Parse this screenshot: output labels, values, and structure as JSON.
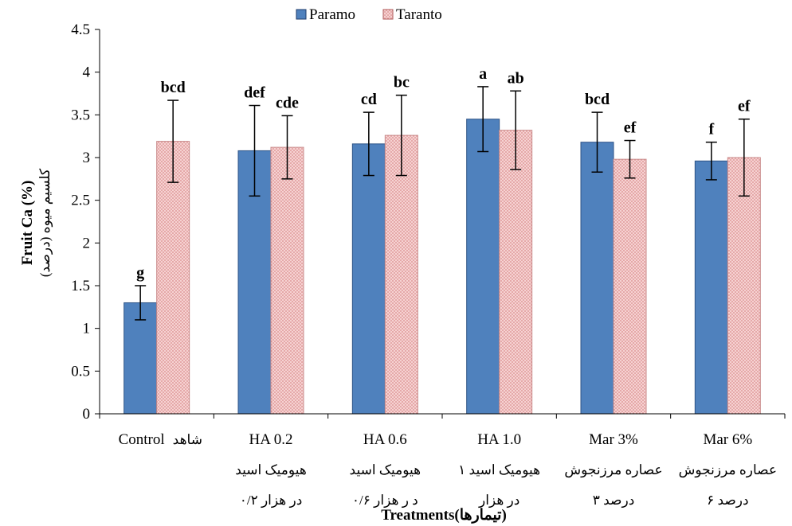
{
  "chart_data": {
    "type": "bar",
    "title": "",
    "xlabel": "Treatments(تیمارها)",
    "ylabel": "Fruit Ca (%)",
    "ylabel_fa": "کلسیم میوه (درصد)",
    "ylim": [
      0,
      4.5
    ],
    "yticks": [
      "0",
      "0.5",
      "1",
      "1.5",
      "2",
      "2.5",
      "3",
      "3.5",
      "4",
      "4.5"
    ],
    "grid": false,
    "legend": "top-center",
    "categories": [
      {
        "label": "Control",
        "fa": [
          "شاهد"
        ]
      },
      {
        "label": "HA 0.2",
        "fa": [
          "هیومیک اسید",
          "۰/۲ در هزار"
        ]
      },
      {
        "label": "HA 0.6",
        "fa": [
          "هیومیک اسید",
          "۰/۶ د ر هزار"
        ]
      },
      {
        "label": "HA 1.0",
        "fa": [
          "هیومیک اسید ۱",
          "در هزار"
        ]
      },
      {
        "label": "Mar 3%",
        "fa": [
          "عصاره مرزنجوش",
          "۳ درصد"
        ]
      },
      {
        "label": "Mar 6%",
        "fa": [
          "عصاره مرزنجوش",
          "۶ درصد"
        ]
      }
    ],
    "series": [
      {
        "name": "Paramo",
        "color": "#4f81bd",
        "values": [
          1.3,
          3.08,
          3.16,
          3.45,
          3.18,
          2.96
        ],
        "errors": [
          0.2,
          0.53,
          0.37,
          0.38,
          0.35,
          0.22
        ],
        "letters": [
          "g",
          "def",
          "cd",
          "a",
          "bcd",
          "f"
        ]
      },
      {
        "name": "Taranto",
        "color": "#f2c4c4",
        "values": [
          3.19,
          3.12,
          3.26,
          3.32,
          2.98,
          3.0
        ],
        "errors": [
          0.48,
          0.37,
          0.47,
          0.46,
          0.22,
          0.45
        ],
        "letters": [
          "bcd",
          "cde",
          "bc",
          "ab",
          "ef",
          "ef"
        ]
      }
    ]
  }
}
